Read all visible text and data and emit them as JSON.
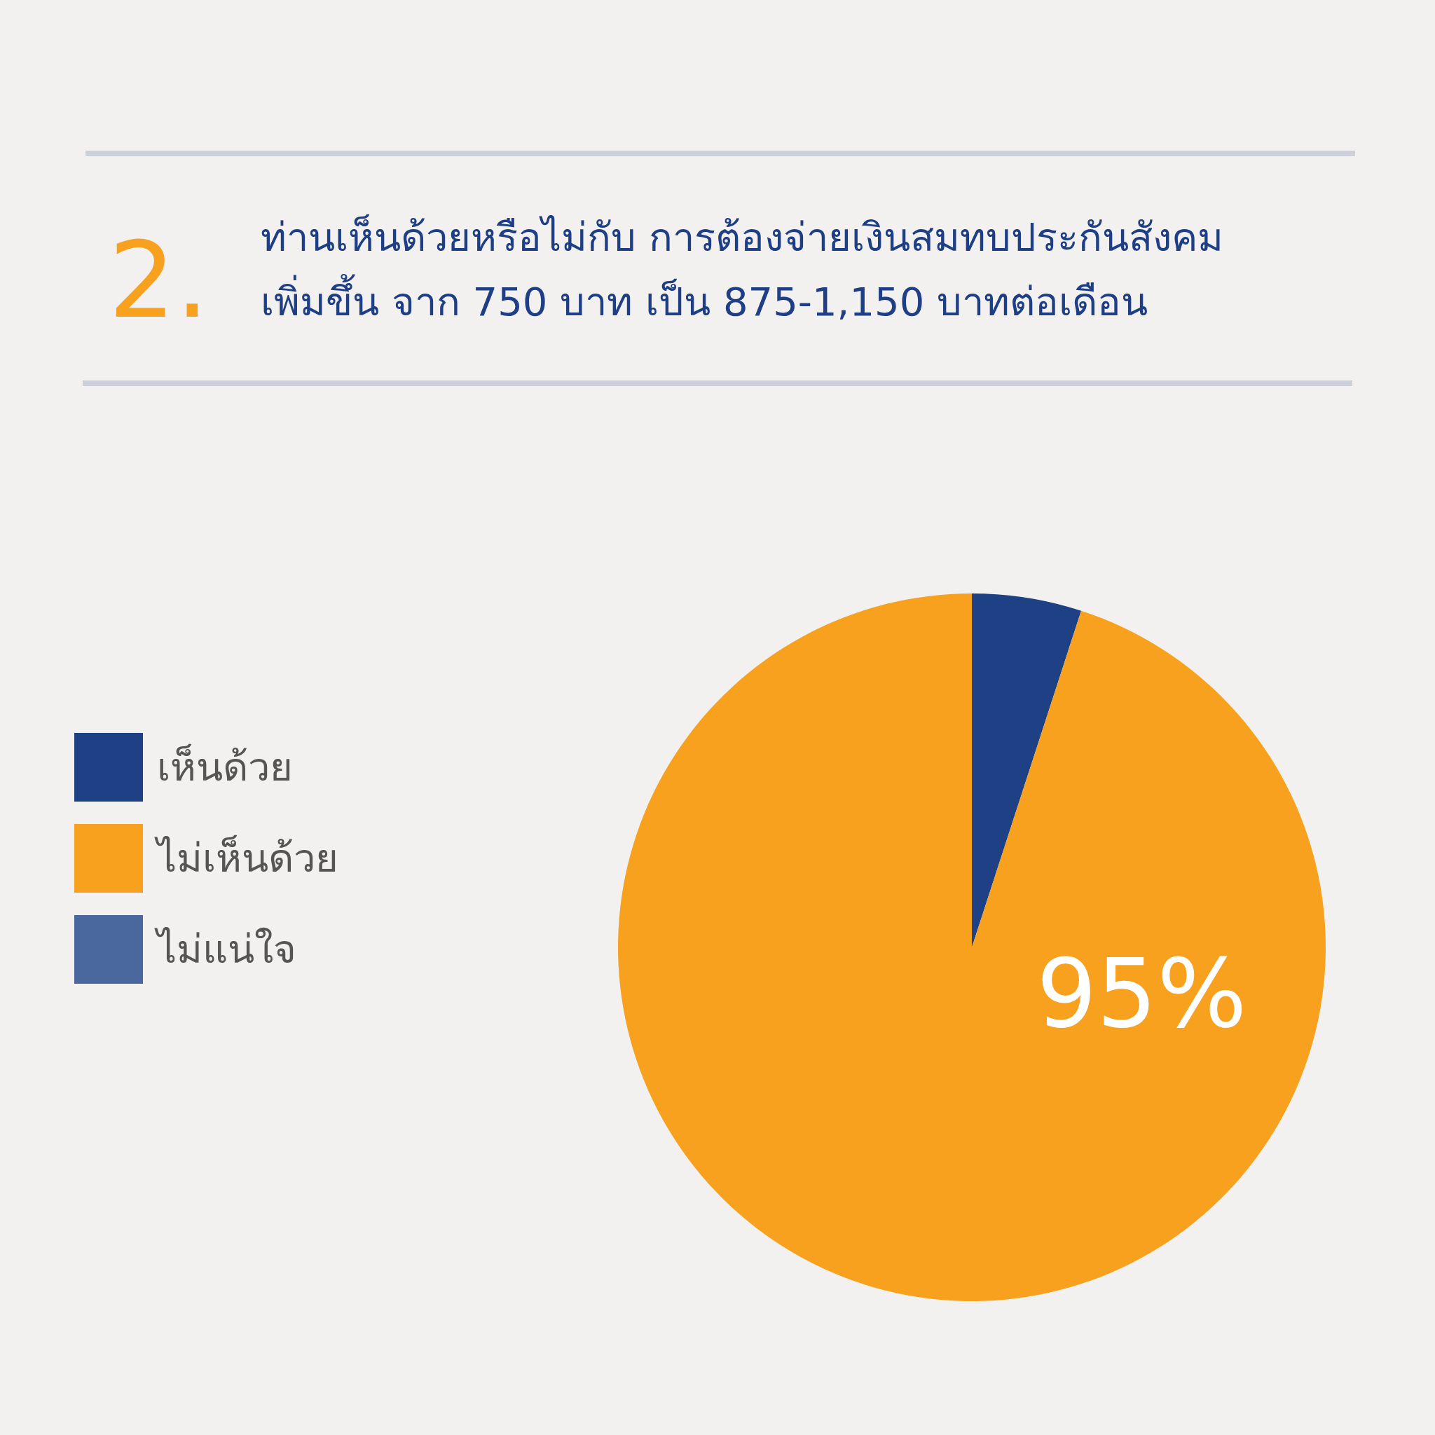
{
  "chart_data": {
    "type": "pie",
    "title": "2. ท่านเห็นด้วยหรือไม่กับ การต้องจ่ายเงินสมทบประกันสังคม\nเพิ่มขึ้น จาก 750 บาท เป็น 875-1,150 บาทต่อเดือน",
    "categories": [
      "เห็นด้วย",
      "ไม่เห็นด้วย",
      "ไม่แน่ใจ"
    ],
    "values": [
      5,
      95,
      0
    ],
    "colors": [
      "#1e4185",
      "#f7a11f",
      "#4a689e"
    ],
    "value_labels": [
      null,
      "95%",
      null
    ],
    "legend": "left"
  }
}
